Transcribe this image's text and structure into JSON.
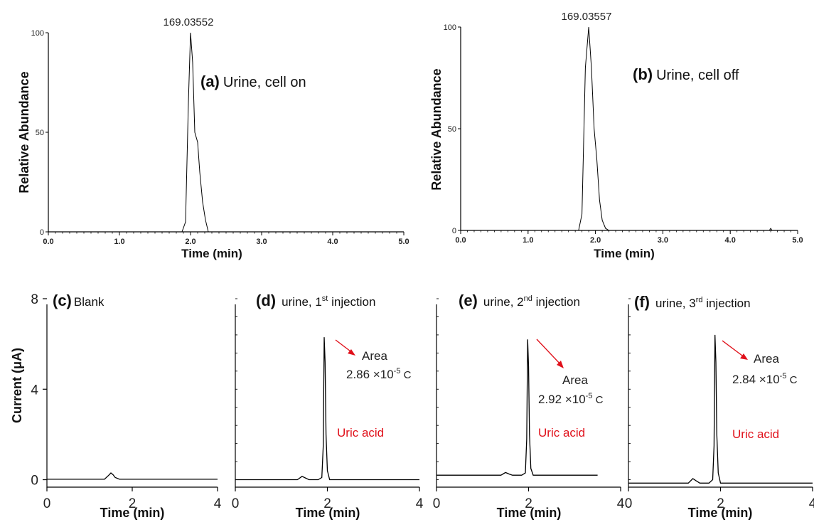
{
  "chart_data": [
    {
      "id": "a",
      "type": "line",
      "panel_letter": "(a)",
      "title": "Urine, cell on",
      "peak_label": "169.03552",
      "xlabel": "Time (min)",
      "ylabel": "Relative Abundance",
      "xlim": [
        0,
        5
      ],
      "ylim": [
        0,
        100
      ],
      "xticks": [
        "0.0",
        "1.0",
        "2.0",
        "3.0",
        "4.0",
        "5.0"
      ],
      "yticks": [
        "0",
        "50",
        "100"
      ],
      "x": [
        0.0,
        1.88,
        1.93,
        1.97,
        2.0,
        2.03,
        2.06,
        2.1,
        2.13,
        2.17,
        2.21,
        2.25,
        5.0
      ],
      "y": [
        0,
        0,
        5,
        65,
        100,
        85,
        50,
        45,
        30,
        15,
        6,
        0,
        0
      ]
    },
    {
      "id": "b",
      "type": "line",
      "panel_letter": "(b)",
      "title": "Urine, cell off",
      "peak_label": "169.03557",
      "xlabel": "Time (min)",
      "ylabel": "Relative Abundance",
      "xlim": [
        0,
        5
      ],
      "ylim": [
        0,
        100
      ],
      "xticks": [
        "0.0",
        "1.0",
        "2.0",
        "3.0",
        "4.0",
        "5.0"
      ],
      "yticks": [
        "0",
        "50",
        "100"
      ],
      "x": [
        0.0,
        1.75,
        1.8,
        1.85,
        1.9,
        1.94,
        1.98,
        2.02,
        2.06,
        2.1,
        2.15,
        2.2,
        4.58,
        4.6,
        4.62,
        5.0
      ],
      "y": [
        0,
        0,
        8,
        80,
        100,
        80,
        50,
        35,
        15,
        5,
        1,
        0,
        0,
        1,
        0,
        0
      ]
    },
    {
      "id": "c",
      "type": "line",
      "panel_letter": "(c)",
      "title": "Blank",
      "xlabel": "Time (min)",
      "ylabel": "Current (μA)",
      "xlim": [
        0,
        4
      ],
      "ylim": [
        -0.8,
        8
      ],
      "xticks": [
        "0",
        "2",
        "4"
      ],
      "yticks": [
        "0",
        "4",
        "8"
      ],
      "x": [
        0.0,
        1.35,
        1.45,
        1.5,
        1.55,
        1.6,
        1.7,
        4.0
      ],
      "y": [
        0.02,
        0.02,
        0.2,
        0.3,
        0.22,
        0.1,
        0.02,
        0.02
      ]
    },
    {
      "id": "d",
      "type": "line",
      "panel_letter": "(d)",
      "title_text": "urine, 1",
      "title_sup": "st",
      "title_tail": " injection",
      "area_label": "Area",
      "area_value": "2.86 ×10",
      "area_exp": "-5",
      "area_unit": " C",
      "compound": "Uric acid",
      "xlabel": "Time (min)",
      "xlim": [
        0,
        4
      ],
      "ylim": [
        -0.8,
        8
      ],
      "xticks": [
        "0",
        "2",
        "4"
      ],
      "x": [
        0.0,
        1.35,
        1.45,
        1.52,
        1.6,
        1.8,
        1.88,
        1.91,
        1.93,
        1.95,
        1.97,
        2.0,
        2.05,
        4.0
      ],
      "y": [
        0,
        0,
        0.15,
        0.08,
        0,
        0,
        0.1,
        1.5,
        6.3,
        5.2,
        2.0,
        0.4,
        0,
        0
      ]
    },
    {
      "id": "e",
      "type": "line",
      "panel_letter": "(e)",
      "title_text": "urine, 2",
      "title_sup": "nd",
      "title_tail": " injection",
      "area_label": "Area",
      "area_value": "2.92 ×10",
      "area_exp": "-5",
      "area_unit": " C",
      "compound": "Uric acid",
      "xlabel": "Time (min)",
      "xlim": [
        0,
        4
      ],
      "ylim": [
        -0.8,
        8
      ],
      "xticks": [
        "0",
        "2",
        "4"
      ],
      "x": [
        0.0,
        1.4,
        1.5,
        1.58,
        1.65,
        1.85,
        1.93,
        1.96,
        1.98,
        2.0,
        2.02,
        2.05,
        2.1,
        3.5
      ],
      "y": [
        0.2,
        0.2,
        0.32,
        0.25,
        0.2,
        0.2,
        0.3,
        1.8,
        6.2,
        5.0,
        2.0,
        0.5,
        0.2,
        0.2
      ]
    },
    {
      "id": "f",
      "type": "line",
      "panel_letter": "(f)",
      "title_text": "urine, 3",
      "title_sup": "rd",
      "title_tail": " injection",
      "area_label": "Area",
      "area_value": "2.84 ×10",
      "area_exp": "-5",
      "area_unit": " C",
      "compound": "Uric acid",
      "xlabel": "Time (min)",
      "xlim": [
        0,
        4
      ],
      "ylim": [
        -0.8,
        8
      ],
      "xticks": [
        "0",
        "2",
        "4"
      ],
      "x": [
        0.0,
        1.3,
        1.4,
        1.47,
        1.55,
        1.75,
        1.83,
        1.86,
        1.88,
        1.9,
        1.92,
        1.95,
        2.0,
        4.0
      ],
      "y": [
        -0.15,
        -0.15,
        0.05,
        -0.05,
        -0.15,
        -0.15,
        0.0,
        1.5,
        6.4,
        5.2,
        2.0,
        0.3,
        -0.15,
        -0.15
      ]
    }
  ]
}
